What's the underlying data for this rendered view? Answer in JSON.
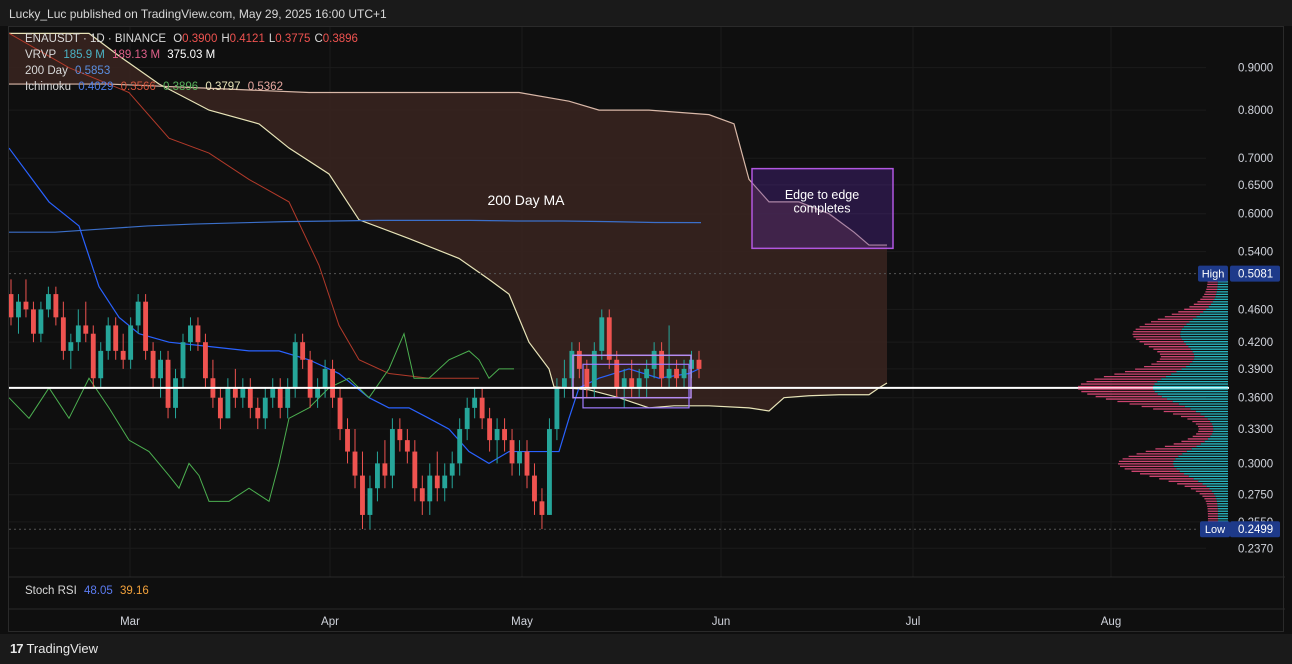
{
  "header": {
    "text": "Lucky_Luc published on TradingView.com, May 29, 2025 16:00 UTC+1"
  },
  "footer": {
    "brand": "TradingView",
    "logo_mark": "17"
  },
  "legend": {
    "symbol": "ENAUSDT · 1D · BINANCE",
    "ohlc": [
      {
        "k": "O",
        "v": "0.3900"
      },
      {
        "k": "H",
        "v": "0.4121"
      },
      {
        "k": "L",
        "v": "0.3775"
      },
      {
        "k": "C",
        "v": "0.3896"
      }
    ],
    "vrvp": {
      "label": "VRVP",
      "v1": "185.9 M",
      "v2": "189.13 M",
      "v3": "375.03 M"
    },
    "ma": {
      "label": "200 Day",
      "value": "0.5853"
    },
    "ichimoku": {
      "label": "Ichimoku",
      "values": [
        "0.4029",
        "0.3566",
        "0.3896",
        "0.3797",
        "0.5362"
      ]
    },
    "stoch": {
      "label": "Stoch RSI",
      "k": "48.05",
      "d": "39.16"
    }
  },
  "annotations": {
    "ma_label": "200 Day MA",
    "box_line1": "Edge to edge",
    "box_line2": "completes"
  },
  "price_axis": {
    "ticks": [
      "0.9000",
      "0.8000",
      "0.7000",
      "0.6500",
      "0.6000",
      "0.5400",
      "0.4600",
      "0.4200",
      "0.3900",
      "0.3600",
      "0.3300",
      "0.3000",
      "0.2750",
      "0.2550",
      "0.2370"
    ],
    "high_label": "High",
    "high_value": "0.5081",
    "low_label": "Low",
    "low_value": "0.2499"
  },
  "time_axis": {
    "labels": [
      "Mar",
      "Apr",
      "May",
      "Jun",
      "Jul",
      "Aug"
    ]
  },
  "colors": {
    "up": "#26a69a",
    "down": "#ef5350",
    "ma": "#3b6fc9",
    "tenkan": "#2962ff",
    "kijun": "#b23a2a",
    "lagging": "#4caf50",
    "spanA": "#e8e4b8",
    "kumo": "#3a2420",
    "hline": "#ffffff",
    "vp_up": "#2bc7d1",
    "vp_down": "#e04a7a",
    "box": "#b157e0"
  },
  "chart_data": {
    "type": "candlestick",
    "symbol": "ENAUSDT",
    "interval": "1D",
    "exchange": "BINANCE",
    "scale": "log",
    "ylim": [
      0.225,
      0.98
    ],
    "candles": [
      [
        0.48,
        0.5,
        0.44,
        0.45
      ],
      [
        0.45,
        0.48,
        0.43,
        0.47
      ],
      [
        0.47,
        0.5,
        0.45,
        0.46
      ],
      [
        0.46,
        0.47,
        0.42,
        0.43
      ],
      [
        0.43,
        0.47,
        0.42,
        0.46
      ],
      [
        0.46,
        0.49,
        0.45,
        0.48
      ],
      [
        0.48,
        0.49,
        0.44,
        0.45
      ],
      [
        0.45,
        0.47,
        0.4,
        0.41
      ],
      [
        0.41,
        0.43,
        0.39,
        0.42
      ],
      [
        0.42,
        0.46,
        0.41,
        0.44
      ],
      [
        0.44,
        0.47,
        0.42,
        0.43
      ],
      [
        0.43,
        0.44,
        0.37,
        0.38
      ],
      [
        0.38,
        0.42,
        0.37,
        0.41
      ],
      [
        0.41,
        0.45,
        0.4,
        0.44
      ],
      [
        0.44,
        0.45,
        0.4,
        0.41
      ],
      [
        0.41,
        0.43,
        0.39,
        0.4
      ],
      [
        0.4,
        0.45,
        0.39,
        0.44
      ],
      [
        0.44,
        0.48,
        0.43,
        0.47
      ],
      [
        0.47,
        0.48,
        0.4,
        0.41
      ],
      [
        0.41,
        0.42,
        0.37,
        0.38
      ],
      [
        0.38,
        0.41,
        0.36,
        0.4
      ],
      [
        0.4,
        0.41,
        0.34,
        0.35
      ],
      [
        0.35,
        0.39,
        0.34,
        0.38
      ],
      [
        0.38,
        0.43,
        0.37,
        0.42
      ],
      [
        0.42,
        0.45,
        0.41,
        0.44
      ],
      [
        0.44,
        0.45,
        0.41,
        0.42
      ],
      [
        0.42,
        0.43,
        0.37,
        0.38
      ],
      [
        0.38,
        0.4,
        0.35,
        0.36
      ],
      [
        0.36,
        0.37,
        0.33,
        0.34
      ],
      [
        0.34,
        0.38,
        0.34,
        0.37
      ],
      [
        0.37,
        0.39,
        0.35,
        0.36
      ],
      [
        0.36,
        0.38,
        0.35,
        0.37
      ],
      [
        0.37,
        0.38,
        0.34,
        0.35
      ],
      [
        0.35,
        0.36,
        0.33,
        0.34
      ],
      [
        0.34,
        0.37,
        0.33,
        0.36
      ],
      [
        0.36,
        0.38,
        0.35,
        0.37
      ],
      [
        0.37,
        0.38,
        0.34,
        0.35
      ],
      [
        0.35,
        0.38,
        0.34,
        0.37
      ],
      [
        0.37,
        0.43,
        0.36,
        0.42
      ],
      [
        0.42,
        0.43,
        0.39,
        0.4
      ],
      [
        0.4,
        0.41,
        0.35,
        0.36
      ],
      [
        0.36,
        0.38,
        0.35,
        0.37
      ],
      [
        0.37,
        0.4,
        0.36,
        0.39
      ],
      [
        0.39,
        0.4,
        0.35,
        0.36
      ],
      [
        0.36,
        0.37,
        0.32,
        0.33
      ],
      [
        0.33,
        0.34,
        0.3,
        0.31
      ],
      [
        0.31,
        0.33,
        0.28,
        0.29
      ],
      [
        0.29,
        0.31,
        0.25,
        0.26
      ],
      [
        0.26,
        0.29,
        0.25,
        0.28
      ],
      [
        0.28,
        0.31,
        0.27,
        0.3
      ],
      [
        0.3,
        0.32,
        0.28,
        0.29
      ],
      [
        0.29,
        0.34,
        0.28,
        0.33
      ],
      [
        0.33,
        0.34,
        0.31,
        0.32
      ],
      [
        0.32,
        0.33,
        0.3,
        0.31
      ],
      [
        0.31,
        0.32,
        0.27,
        0.28
      ],
      [
        0.28,
        0.29,
        0.26,
        0.27
      ],
      [
        0.27,
        0.3,
        0.26,
        0.29
      ],
      [
        0.29,
        0.31,
        0.27,
        0.28
      ],
      [
        0.28,
        0.3,
        0.27,
        0.29
      ],
      [
        0.29,
        0.31,
        0.28,
        0.3
      ],
      [
        0.3,
        0.34,
        0.29,
        0.33
      ],
      [
        0.33,
        0.36,
        0.32,
        0.35
      ],
      [
        0.35,
        0.37,
        0.34,
        0.36
      ],
      [
        0.36,
        0.37,
        0.33,
        0.34
      ],
      [
        0.34,
        0.35,
        0.31,
        0.32
      ],
      [
        0.32,
        0.34,
        0.3,
        0.33
      ],
      [
        0.33,
        0.34,
        0.31,
        0.32
      ],
      [
        0.32,
        0.33,
        0.29,
        0.3
      ],
      [
        0.3,
        0.32,
        0.29,
        0.31
      ],
      [
        0.31,
        0.32,
        0.28,
        0.29
      ],
      [
        0.29,
        0.3,
        0.26,
        0.27
      ],
      [
        0.27,
        0.28,
        0.25,
        0.26
      ],
      [
        0.26,
        0.34,
        0.26,
        0.33
      ],
      [
        0.33,
        0.38,
        0.32,
        0.37
      ],
      [
        0.37,
        0.4,
        0.36,
        0.38
      ],
      [
        0.38,
        0.42,
        0.37,
        0.41
      ],
      [
        0.41,
        0.42,
        0.38,
        0.39
      ],
      [
        0.39,
        0.4,
        0.36,
        0.37
      ],
      [
        0.37,
        0.42,
        0.36,
        0.41
      ],
      [
        0.41,
        0.46,
        0.4,
        0.45
      ],
      [
        0.45,
        0.46,
        0.39,
        0.4
      ],
      [
        0.4,
        0.41,
        0.36,
        0.37
      ],
      [
        0.37,
        0.39,
        0.35,
        0.38
      ],
      [
        0.38,
        0.4,
        0.36,
        0.37
      ],
      [
        0.37,
        0.39,
        0.36,
        0.38
      ],
      [
        0.38,
        0.4,
        0.36,
        0.39
      ],
      [
        0.39,
        0.42,
        0.38,
        0.41
      ],
      [
        0.41,
        0.42,
        0.37,
        0.38
      ],
      [
        0.38,
        0.44,
        0.37,
        0.39
      ],
      [
        0.39,
        0.4,
        0.37,
        0.38
      ],
      [
        0.38,
        0.4,
        0.37,
        0.39
      ],
      [
        0.39,
        0.41,
        0.38,
        0.4
      ],
      [
        0.4,
        0.41,
        0.38,
        0.39
      ]
    ],
    "ma200": [
      0.57,
      0.57,
      0.575,
      0.58,
      0.583,
      0.585,
      0.587,
      0.588,
      0.589,
      0.589,
      0.589,
      0.588,
      0.588,
      0.587,
      0.5855,
      0.5853
    ],
    "horizontal_line": 0.37,
    "high": 0.5081,
    "low": 0.2499,
    "stoch_rsi": {
      "k": 48.05,
      "d": 39.16
    }
  }
}
